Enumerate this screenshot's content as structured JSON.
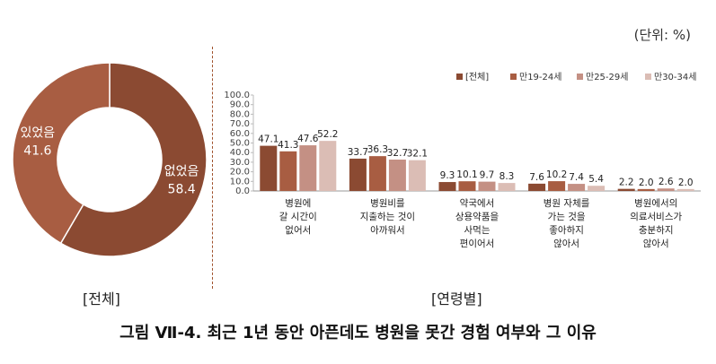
{
  "unit_label": "(단위: %)",
  "caption": "그림 Ⅶ-4. 최근 1년 동안 아픈데도 병원을 못간 경험 여부와 그 이유",
  "left_label": "[전체]",
  "right_label": "[연령별]",
  "colors": {
    "series": [
      "#8b4a32",
      "#a85d42",
      "#c49084",
      "#dbbdb5"
    ],
    "pie": [
      "#8b4a32",
      "#a85d42"
    ]
  },
  "chart_data": [
    {
      "type": "pie",
      "donut": true,
      "slices": [
        {
          "label": "없었음",
          "value": 58.4
        },
        {
          "label": "있었음",
          "value": 41.6
        }
      ]
    },
    {
      "type": "bar",
      "ylim": [
        0,
        100
      ],
      "yticks": [
        "100.0",
        "90.0",
        "80.0",
        "70.0",
        "60.0",
        "50.0",
        "40.0",
        "30.0",
        "20.0",
        "10.0",
        "0.0"
      ],
      "categories": [
        [
          "병원에",
          "갈 시간이",
          "없어서"
        ],
        [
          "병원비를",
          "지출하는 것이",
          "아까워서"
        ],
        [
          "약국에서",
          "상용약품을",
          "사먹는",
          "편이어서"
        ],
        [
          "병원 자체를",
          "가는 것을",
          "좋아하지",
          "않아서"
        ],
        [
          "병원에서의",
          "의료서비스가",
          "충분하지",
          "않아서"
        ]
      ],
      "legend_position": "top-right",
      "series": [
        {
          "name": "[전체]",
          "values": [
            47.1,
            33.7,
            9.3,
            7.6,
            2.2
          ]
        },
        {
          "name": "만19-24세",
          "values": [
            41.3,
            36.3,
            10.1,
            10.2,
            2.0
          ]
        },
        {
          "name": "만25-29세",
          "values": [
            47.6,
            32.7,
            9.7,
            7.4,
            2.6
          ]
        },
        {
          "name": "만30-34세",
          "values": [
            52.2,
            32.1,
            8.3,
            5.4,
            2.0
          ]
        }
      ]
    }
  ]
}
